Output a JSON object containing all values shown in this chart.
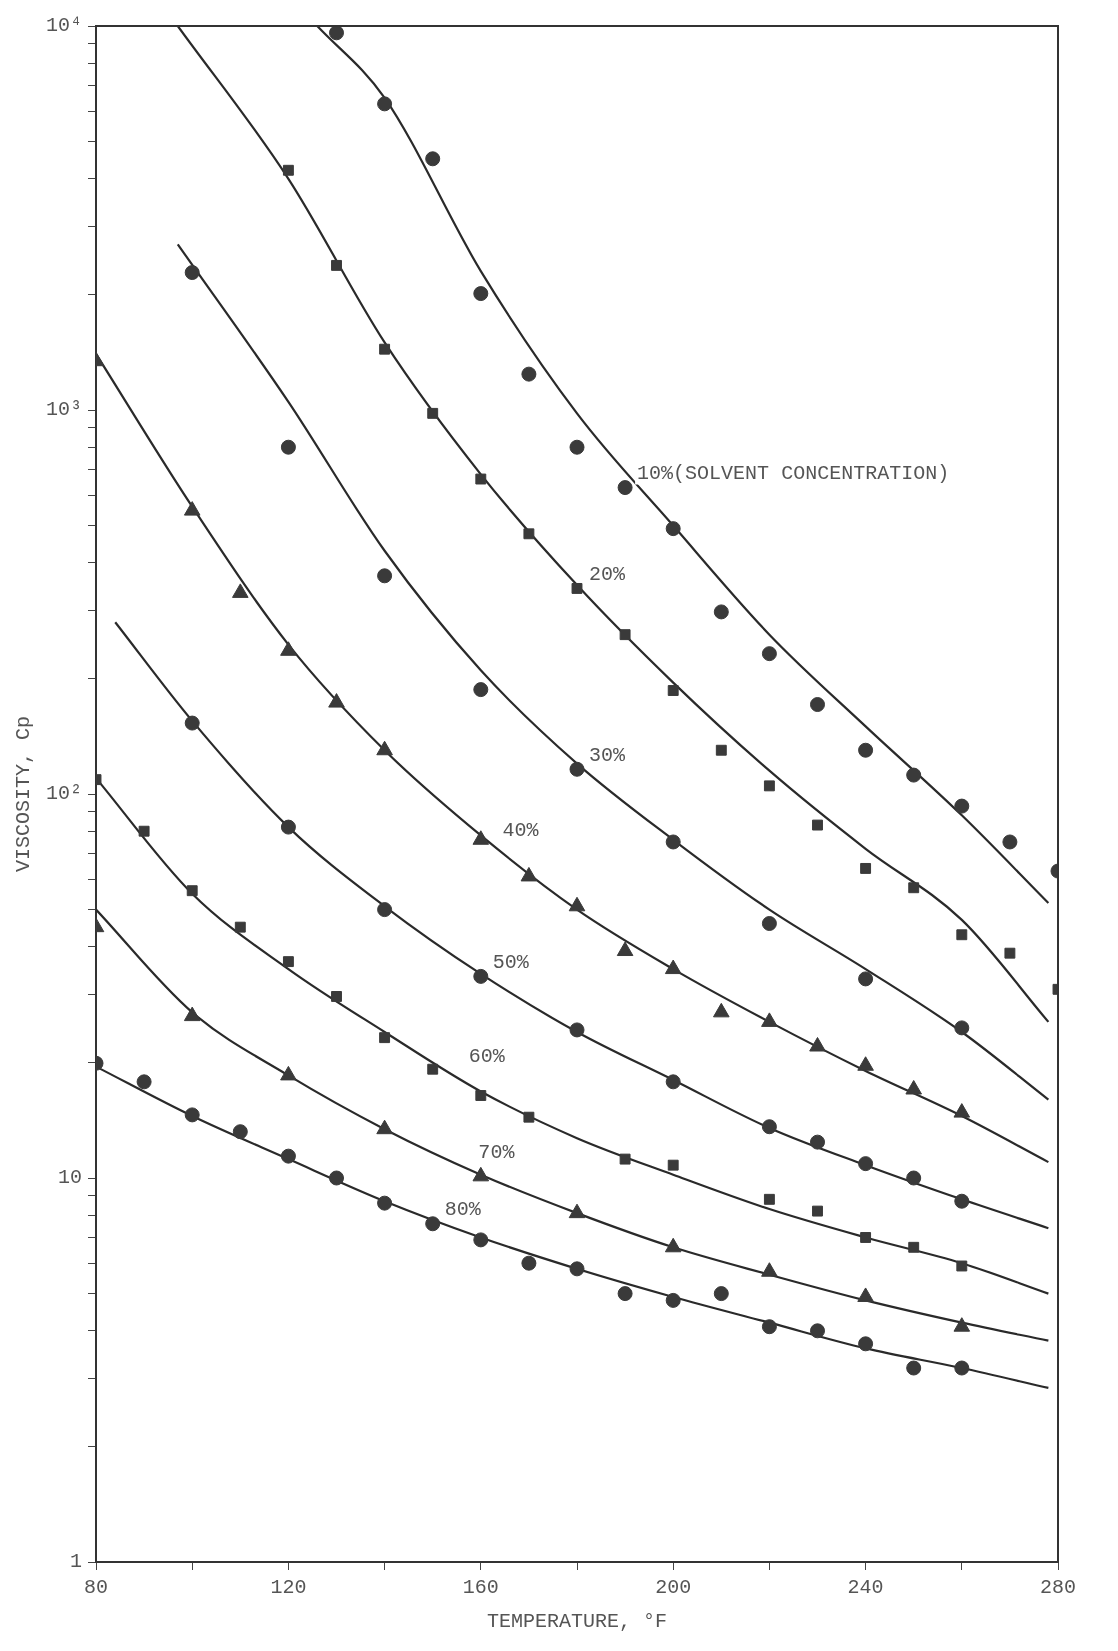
{
  "chart_data": {
    "type": "scatter",
    "xlabel": "TEMPERATURE, °F",
    "ylabel": "VISCOSITY, Cp",
    "log": true,
    "grid": false,
    "legend": false,
    "xlim": [
      80,
      280
    ],
    "ylim": [
      1,
      10000
    ],
    "xticks": [
      80,
      {
        "value": 100,
        "label": null
      },
      120,
      {
        "value": 140,
        "label": null
      },
      160,
      {
        "value": 180,
        "label": null
      },
      200,
      {
        "value": 220,
        "label": null
      },
      240,
      {
        "value": 260,
        "label": null
      },
      280
    ],
    "yticks": [
      1,
      {
        "value": 2,
        "label": null
      },
      {
        "value": 3,
        "label": null
      },
      {
        "value": 4,
        "label": null
      },
      {
        "value": 5,
        "label": null
      },
      {
        "value": 6,
        "label": null
      },
      {
        "value": 7,
        "label": null
      },
      {
        "value": 8,
        "label": null
      },
      {
        "value": 9,
        "label": null
      },
      10,
      {
        "value": 20,
        "label": null
      },
      {
        "value": 30,
        "label": null
      },
      {
        "value": 40,
        "label": null
      },
      {
        "value": 50,
        "label": null
      },
      {
        "value": 60,
        "label": null
      },
      {
        "value": 70,
        "label": null
      },
      {
        "value": 80,
        "label": null
      },
      {
        "value": 90,
        "label": null
      },
      {
        "value": 100,
        "label": "10²"
      },
      {
        "value": 200,
        "label": null
      },
      {
        "value": 300,
        "label": null
      },
      {
        "value": 400,
        "label": null
      },
      {
        "value": 500,
        "label": null
      },
      {
        "value": 600,
        "label": null
      },
      {
        "value": 700,
        "label": null
      },
      {
        "value": 800,
        "label": null
      },
      {
        "value": 900,
        "label": null
      },
      {
        "value": 1000,
        "label": "10³"
      },
      {
        "value": 2000,
        "label": null
      },
      {
        "value": 3000,
        "label": null
      },
      {
        "value": 4000,
        "label": null
      },
      {
        "value": 5000,
        "label": null
      },
      {
        "value": 6000,
        "label": null
      },
      {
        "value": 7000,
        "label": null
      },
      {
        "value": 8000,
        "label": null
      },
      {
        "value": 9000,
        "label": null
      },
      {
        "value": 10000,
        "label": "10⁴"
      }
    ],
    "annotations": [
      {
        "text": "10%(SOLVENT CONCENTRATION)",
        "x": 190,
        "y": 628
      },
      {
        "text": "20%",
        "x": 180,
        "y": 343
      },
      {
        "text": "30%",
        "x": 180,
        "y": 116
      },
      {
        "text": "40%",
        "x": 162,
        "y": 74
      },
      {
        "text": "50%",
        "x": 160,
        "y": 33.5
      },
      {
        "text": "60%",
        "x": 155,
        "y": 19
      },
      {
        "text": "70%",
        "x": 157,
        "y": 10.7
      },
      {
        "text": "80%",
        "x": 150,
        "y": 7.6
      }
    ],
    "series": [
      {
        "type": "scatter",
        "marker": "circle",
        "color": "#3a3a3a",
        "x": [
          130,
          140,
          150,
          160,
          170,
          180,
          190,
          200,
          210,
          220,
          230,
          240,
          250,
          260,
          270,
          280
        ],
        "values": [
          9600,
          6270,
          4510,
          2010,
          1240,
          800,
          628,
          491,
          298,
          232,
          171,
          130,
          112,
          93,
          75,
          63
        ]
      },
      {
        "type": "scatter",
        "marker": "square",
        "color": "#3a3a3a",
        "x": [
          120,
          130,
          140,
          150,
          160,
          170,
          180,
          190,
          200,
          210,
          220,
          230,
          240,
          250,
          260,
          270,
          280
        ],
        "values": [
          4210,
          2380,
          1440,
          980,
          661,
          476,
          343,
          260,
          186,
          130,
          105,
          83,
          64,
          57,
          43,
          38.5,
          31
        ]
      },
      {
        "type": "scatter",
        "marker": "circle",
        "color": "#3a3a3a",
        "x": [
          100,
          120,
          140,
          160,
          180,
          200,
          220,
          240,
          260
        ],
        "values": [
          2280,
          800,
          370,
          187,
          116,
          75,
          46,
          33,
          24.6
        ]
      },
      {
        "type": "scatter",
        "marker": "triangle",
        "color": "#3a3a3a",
        "x": [
          80,
          100,
          110,
          120,
          130,
          140,
          160,
          170,
          180,
          190,
          200,
          210,
          220,
          230,
          240,
          250,
          260
        ],
        "values": [
          1340,
          547,
          334,
          236,
          173,
          130,
          76,
          61,
          51,
          39,
          35,
          27,
          25.5,
          22,
          19.6,
          17,
          14.8
        ]
      },
      {
        "type": "scatter",
        "marker": "circle",
        "color": "#3a3a3a",
        "x": [
          100,
          120,
          140,
          160,
          180,
          200,
          220,
          230,
          240,
          250,
          260
        ],
        "values": [
          153,
          82,
          50,
          33.5,
          24.3,
          17.8,
          13.6,
          12.4,
          10.9,
          10,
          8.7
        ]
      },
      {
        "type": "scatter",
        "marker": "square",
        "color": "#3a3a3a",
        "x": [
          80,
          90,
          100,
          110,
          120,
          130,
          140,
          150,
          160,
          170,
          190,
          200,
          220,
          230,
          240,
          250,
          260
        ],
        "values": [
          109,
          80,
          56,
          45,
          36.6,
          29.7,
          23.2,
          19.2,
          16.4,
          14.4,
          11.2,
          10.8,
          8.8,
          8.2,
          7,
          6.6,
          5.9
        ]
      },
      {
        "type": "scatter",
        "marker": "triangle",
        "color": "#3a3a3a",
        "x": [
          80,
          100,
          120,
          140,
          160,
          180,
          200,
          220,
          240,
          260
        ],
        "values": [
          45,
          26.4,
          18.5,
          13.4,
          10.1,
          8.1,
          6.6,
          5.7,
          4.9,
          4.1
        ]
      },
      {
        "type": "scatter",
        "marker": "circle",
        "color": "#3a3a3a",
        "x": [
          80,
          90,
          100,
          110,
          120,
          130,
          140,
          150,
          160,
          170,
          180,
          190,
          200,
          210,
          220,
          230,
          240,
          250,
          260
        ],
        "values": [
          19.9,
          17.8,
          14.6,
          13.2,
          11.4,
          10,
          8.6,
          7.6,
          6.9,
          6,
          5.8,
          5,
          4.8,
          5,
          4.1,
          4,
          3.7,
          3.2,
          3.2
        ]
      },
      {
        "type": "line",
        "marker": "none",
        "line_style": "solid",
        "color": "#2a2a2a",
        "x": [
          126,
          140,
          160,
          180,
          200,
          220,
          240,
          260,
          278
        ],
        "values": [
          10000,
          6500,
          2300,
          980,
          500,
          260,
          150,
          88,
          52
        ]
      },
      {
        "type": "line",
        "marker": "none",
        "line_style": "solid",
        "color": "#2a2a2a",
        "x": [
          97,
          120,
          140,
          160,
          180,
          200,
          220,
          240,
          260,
          278
        ],
        "values": [
          10000,
          4000,
          1500,
          680,
          350,
          195,
          115,
          72,
          47,
          25.5
        ]
      },
      {
        "type": "line",
        "marker": "none",
        "line_style": "solid",
        "color": "#2a2a2a",
        "x": [
          97,
          120,
          140,
          160,
          180,
          200,
          220,
          240,
          260,
          278
        ],
        "values": [
          2700,
          1050,
          430,
          210,
          120,
          76,
          50,
          35,
          24,
          16
        ]
      },
      {
        "type": "line",
        "marker": "none",
        "line_style": "solid",
        "color": "#2a2a2a",
        "x": [
          80,
          100,
          120,
          140,
          160,
          180,
          200,
          220,
          240,
          260,
          278
        ],
        "values": [
          1400,
          560,
          245,
          130,
          78,
          50,
          35,
          25.5,
          19,
          14.5,
          11
        ]
      },
      {
        "type": "line",
        "marker": "none",
        "line_style": "solid",
        "color": "#2a2a2a",
        "x": [
          84,
          100,
          120,
          140,
          160,
          180,
          200,
          220,
          240,
          260,
          278
        ],
        "values": [
          280,
          155,
          82,
          51,
          34,
          24,
          18,
          13.5,
          10.8,
          8.8,
          7.4
        ]
      },
      {
        "type": "line",
        "marker": "none",
        "line_style": "solid",
        "color": "#2a2a2a",
        "x": [
          80,
          100,
          120,
          140,
          160,
          180,
          200,
          220,
          240,
          260,
          278
        ],
        "values": [
          110,
          55,
          35,
          24,
          16.8,
          12.7,
          10.2,
          8.3,
          7,
          6,
          5
        ]
      },
      {
        "type": "line",
        "marker": "none",
        "line_style": "solid",
        "color": "#2a2a2a",
        "x": [
          80,
          100,
          120,
          140,
          160,
          180,
          200,
          220,
          240,
          260,
          278
        ],
        "values": [
          50,
          27,
          18.5,
          13.4,
          10.2,
          8.1,
          6.6,
          5.6,
          4.8,
          4.2,
          3.77
        ]
      },
      {
        "type": "line",
        "marker": "none",
        "line_style": "solid",
        "color": "#2a2a2a",
        "x": [
          80,
          100,
          120,
          140,
          160,
          180,
          200,
          220,
          240,
          260,
          278
        ],
        "values": [
          19.5,
          14.5,
          11.2,
          8.7,
          7,
          5.8,
          4.9,
          4.2,
          3.6,
          3.2,
          2.84
        ]
      }
    ]
  }
}
